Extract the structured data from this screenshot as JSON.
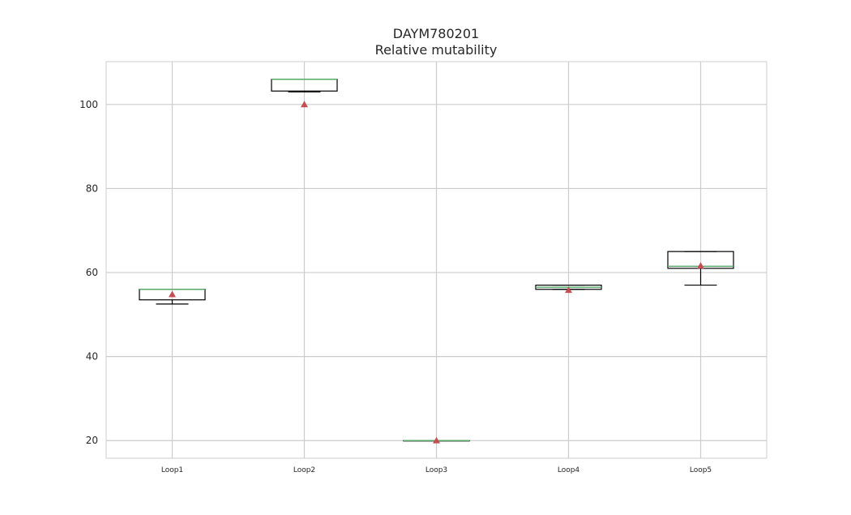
{
  "chart_data": {
    "type": "box",
    "title": "DAYM780201",
    "subtitle": "Relative mutability",
    "xlabel": "",
    "ylabel": "",
    "ylim": [
      15.8,
      110.2
    ],
    "yticks": [
      20,
      40,
      60,
      80,
      100
    ],
    "grid": true,
    "showmeans": true,
    "categories": [
      "Loop1",
      "Loop2",
      "Loop3",
      "Loop4",
      "Loop5"
    ],
    "boxes": [
      {
        "category": "Loop1",
        "whisker_low": 52.5,
        "q1": 53.5,
        "median": 56,
        "q3": 56,
        "whisker_high": 56,
        "mean": 54.8
      },
      {
        "category": "Loop2",
        "whisker_low": 103,
        "q1": 103.2,
        "median": 106,
        "q3": 106,
        "whisker_high": 106,
        "mean": 100
      },
      {
        "category": "Loop3",
        "whisker_low": 20,
        "q1": 20,
        "median": 20,
        "q3": 20,
        "whisker_high": 20,
        "mean": 20
      },
      {
        "category": "Loop4",
        "whisker_low": 56,
        "q1": 56,
        "median": 56.5,
        "q3": 57,
        "whisker_high": 57,
        "mean": 55.8
      },
      {
        "category": "Loop5",
        "whisker_low": 57,
        "q1": 61,
        "median": 61.5,
        "q3": 65,
        "whisker_high": 65,
        "mean": 61.6
      }
    ],
    "colors": {
      "box": "#000000",
      "median": "#55a868",
      "mean": "#c44e52",
      "grid": "#cccccc",
      "spine": "#cccccc"
    }
  }
}
